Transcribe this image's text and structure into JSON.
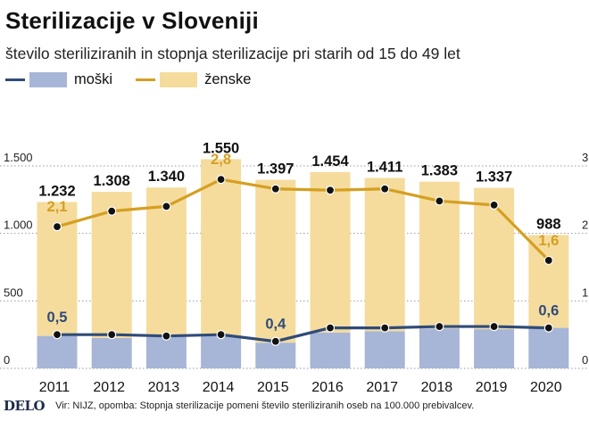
{
  "title": "Sterilizacije v Sloveniji",
  "subtitle": "število steriliziranih in stopnja sterilizacije pri starih od 15 do 49 let",
  "legend": {
    "men": "moški",
    "women": "ženske"
  },
  "footer": {
    "logo": "DELO",
    "source": "Vir: NIJZ, opomba: Stopnja sterilizacije pomeni število steriliziranih oseb na 100.000 prebivalcev."
  },
  "colors": {
    "men_bar": "#a7b5d6",
    "women_bar": "#f5dc9d",
    "men_line": "#2f4b78",
    "women_line": "#d59f22",
    "grid": "#9a9a9a",
    "point": "#111111"
  },
  "chart_data": {
    "type": "bar",
    "categories": [
      "2011",
      "2012",
      "2013",
      "2014",
      "2015",
      "2016",
      "2017",
      "2018",
      "2019",
      "2020"
    ],
    "left_axis": {
      "ylim": [
        0,
        1500
      ],
      "ticks": [
        0,
        500,
        1000,
        1500
      ],
      "tick_labels": [
        "0",
        "500",
        "1.000",
        "1.500"
      ]
    },
    "right_axis": {
      "ylim": [
        0,
        3
      ],
      "ticks": [
        0,
        1,
        2,
        3
      ],
      "tick_labels": [
        "0",
        "1",
        "2",
        "3"
      ]
    },
    "total_labels": [
      "1.232",
      "1.308",
      "1.340",
      "1.550",
      "1.397",
      "1.454",
      "1.411",
      "1.383",
      "1.337",
      "988"
    ],
    "series": [
      {
        "name": "moški",
        "kind": "bar",
        "axis": "left",
        "values": [
          240,
          225,
          235,
          245,
          190,
          265,
          275,
          295,
          290,
          300
        ]
      },
      {
        "name": "ženske",
        "kind": "bar",
        "axis": "left",
        "values": [
          992,
          1083,
          1105,
          1305,
          1207,
          1189,
          1136,
          1088,
          1047,
          688
        ]
      },
      {
        "name": "moški",
        "kind": "line",
        "axis": "right",
        "values": [
          0.5,
          0.5,
          0.48,
          0.5,
          0.4,
          0.6,
          0.6,
          0.62,
          0.62,
          0.6
        ],
        "point_labels": [
          {
            "index": 0,
            "text": "0,5"
          },
          {
            "index": 4,
            "text": "0,4"
          },
          {
            "index": 9,
            "text": "0,6"
          }
        ]
      },
      {
        "name": "ženske",
        "kind": "line",
        "axis": "right",
        "values": [
          2.1,
          2.33,
          2.4,
          2.8,
          2.66,
          2.64,
          2.66,
          2.48,
          2.42,
          1.6
        ],
        "point_labels": [
          {
            "index": 0,
            "text": "2,1"
          },
          {
            "index": 3,
            "text": "2,8"
          },
          {
            "index": 9,
            "text": "1,6"
          }
        ]
      }
    ]
  }
}
